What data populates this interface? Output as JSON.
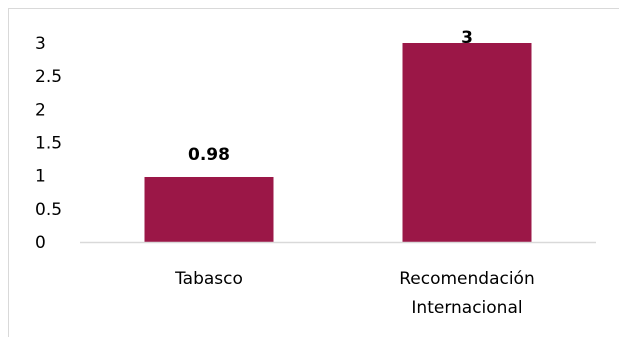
{
  "chart_data": {
    "type": "bar",
    "title": "",
    "xlabel": "",
    "ylabel": "",
    "categories": [
      [
        "Tabasco"
      ],
      [
        "Recomendación",
        "Internacional"
      ]
    ],
    "values": [
      0.98,
      3
    ],
    "data_labels": [
      "0.98",
      "3"
    ],
    "ylim": [
      0,
      3
    ],
    "yticks": [
      "0",
      "0.5",
      "1",
      "1.5",
      "2",
      "2.5",
      "3"
    ],
    "ytick_values": [
      0,
      0.5,
      1,
      1.5,
      2,
      2.5,
      3
    ],
    "grid": false,
    "legend": "none",
    "bar_color": "#9b1747",
    "axis_color": "#d9d9d9"
  }
}
